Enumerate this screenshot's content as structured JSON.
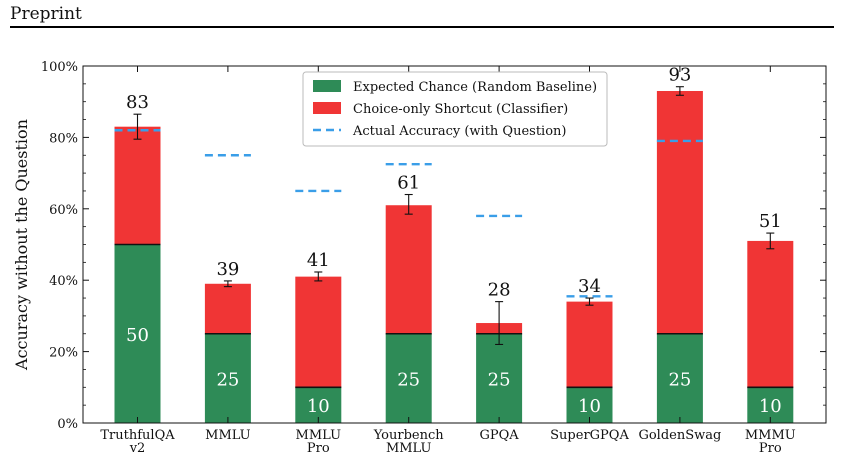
{
  "header": {
    "text": "Preprint"
  },
  "chart_data": {
    "type": "bar",
    "stacked": true,
    "title": "",
    "xlabel": "",
    "ylabel": "Accuracy without the Question",
    "ylim": [
      0,
      100
    ],
    "yticks": [
      "0%",
      "20%",
      "40%",
      "60%",
      "80%",
      "100%"
    ],
    "categories": [
      [
        "TruthfulQA",
        "v2"
      ],
      [
        "MMLU"
      ],
      [
        "MMLU",
        "Pro"
      ],
      [
        "Yourbench",
        "MMLU"
      ],
      [
        "GPQA"
      ],
      [
        "SuperGPQA"
      ],
      [
        "GoldenSwag"
      ],
      [
        "MMMU",
        "Pro"
      ]
    ],
    "series": [
      {
        "name": "Expected Chance (Random Baseline)",
        "color": "#2e8b57",
        "values": [
          50,
          25,
          10,
          25,
          25,
          10,
          25,
          10
        ]
      },
      {
        "name": "Choice-only Shortcut (Classifier)",
        "color": "#f03535",
        "totals": [
          83,
          39,
          41,
          61,
          28,
          34,
          93,
          51
        ]
      }
    ],
    "error_bars": [
      [
        79.5,
        86.5
      ],
      [
        38.2,
        39.8
      ],
      [
        39.8,
        42.3
      ],
      [
        58.5,
        64.0
      ],
      [
        22.0,
        34.0
      ],
      [
        33.0,
        35.0
      ],
      [
        91.8,
        94.2
      ],
      [
        48.8,
        53.2
      ]
    ],
    "actual_accuracy": {
      "name": "Actual Accuracy (with Question)",
      "color": "#3a9ee8",
      "values": [
        82,
        75,
        65,
        72.5,
        58,
        35.5,
        79,
        null
      ]
    },
    "legend_position": "top-center",
    "grid": false
  }
}
